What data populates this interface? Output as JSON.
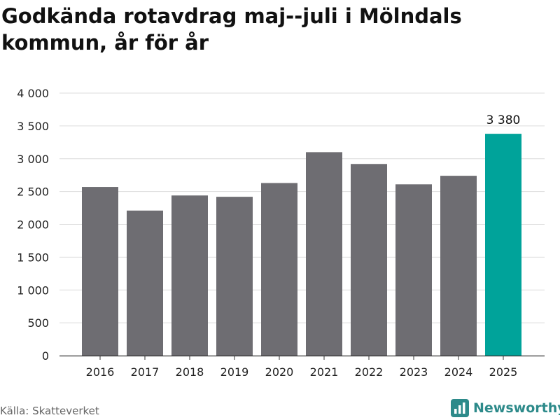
{
  "header": {
    "title": "Godkända rotavdrag maj--juli i Mölndals kommun, år för år"
  },
  "footer": {
    "source": "Källa: Skatteverket",
    "brand": "Newsworthy",
    "brand_icon": "bar-chart-logo-icon"
  },
  "colors": {
    "bar_default": "#6e6d72",
    "bar_highlight": "#00a39a",
    "grid": "#dcdcdc",
    "axis": "#333333",
    "brand": "#2d8a8a"
  },
  "chart_data": {
    "type": "bar",
    "title": "Godkända rotavdrag maj--juli i Mölndals kommun, år för år",
    "xlabel": "",
    "ylabel": "",
    "categories": [
      "2016",
      "2017",
      "2018",
      "2019",
      "2020",
      "2021",
      "2022",
      "2023",
      "2024",
      "2025"
    ],
    "values": [
      2570,
      2210,
      2440,
      2420,
      2630,
      3100,
      2920,
      2610,
      2740,
      3380
    ],
    "highlight_index": 9,
    "ylim": [
      0,
      4000
    ],
    "yticks": [
      0,
      500,
      1000,
      1500,
      2000,
      2500,
      3000,
      3500,
      4000
    ],
    "ytick_labels": [
      "0",
      "500",
      "1 000",
      "1 500",
      "2 000",
      "2 500",
      "3 000",
      "3 500",
      "4 000"
    ],
    "data_labels": [
      {
        "index": 9,
        "text": "3 380"
      }
    ],
    "grid": true,
    "legend": "none"
  }
}
